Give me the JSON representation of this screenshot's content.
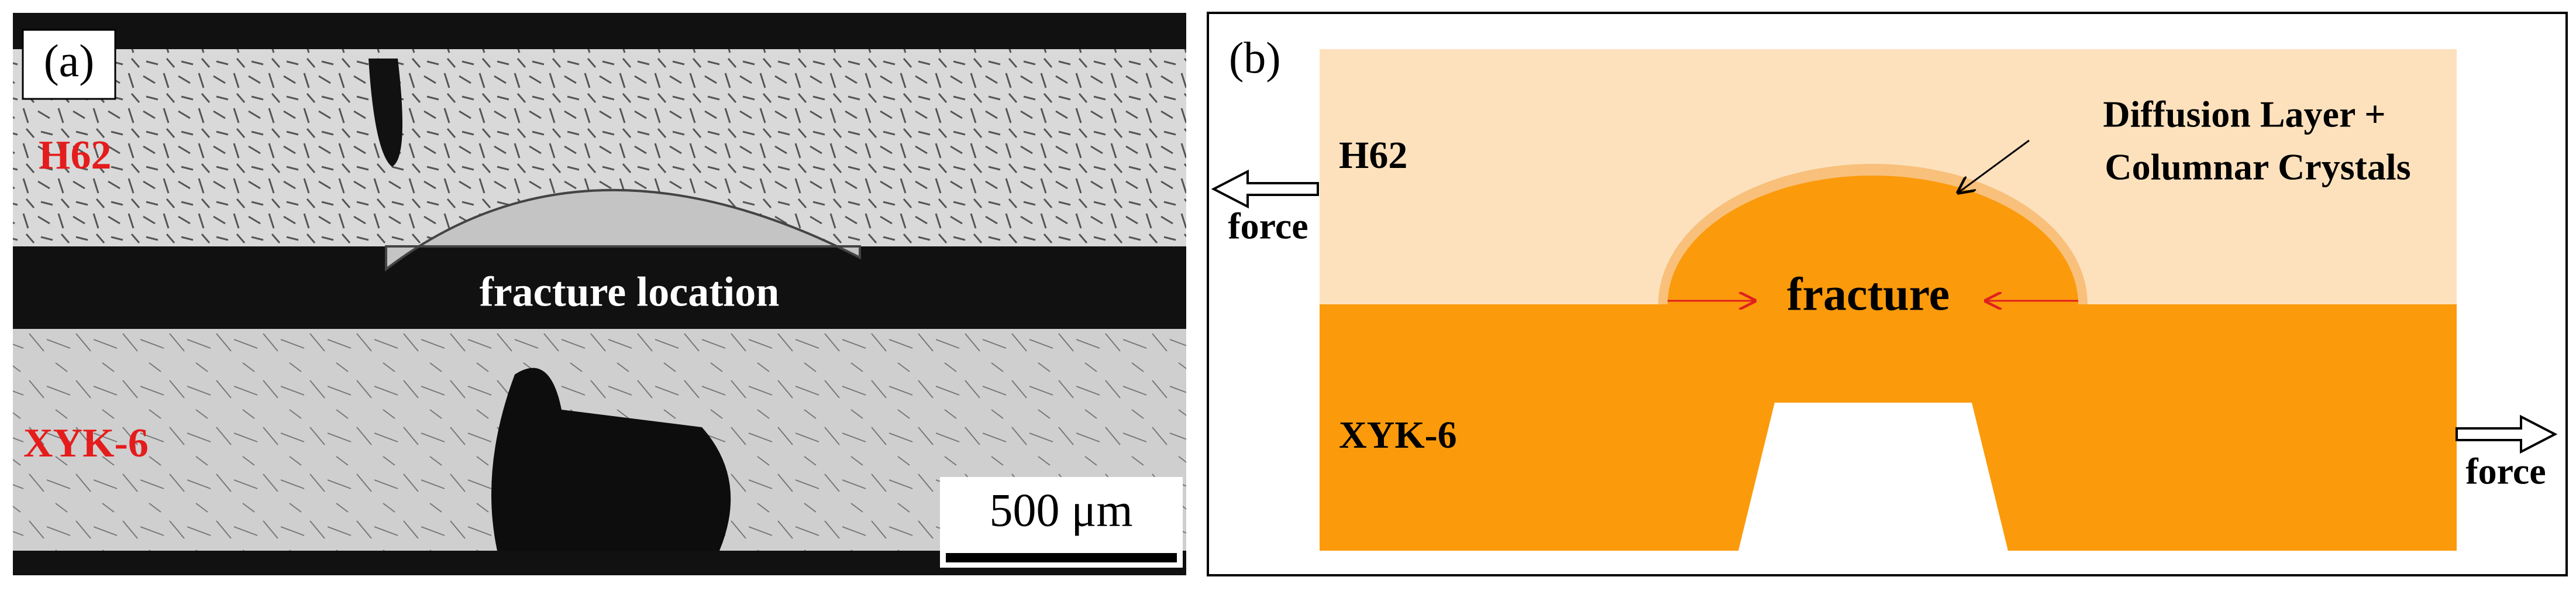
{
  "panel_a": {
    "label": "(a)",
    "top_material": "H62",
    "bottom_material": "XYK-6",
    "annotation": "fracture location",
    "scale_bar": "500 μm"
  },
  "panel_b": {
    "label": "(b)",
    "top_material": "H62",
    "bottom_material": "XYK-6",
    "layer_note": [
      "Diffusion Layer +",
      "Columnar Crystals"
    ],
    "fracture": "fracture",
    "force_left": "force",
    "force_right": "force"
  }
}
